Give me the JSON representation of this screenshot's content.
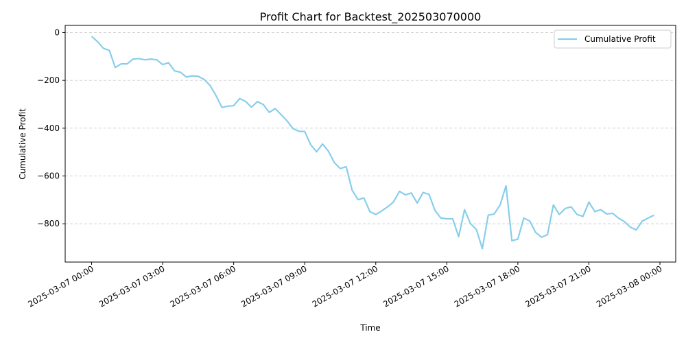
{
  "chart_data": {
    "type": "line",
    "title": "Profit Chart for Backtest_202503070000",
    "xlabel": "Time",
    "ylabel": "Cumulative Profit",
    "x_range": [
      "2025-03-06 22:53",
      "2025-03-08 00:40"
    ],
    "ylim": [
      -960,
      30
    ],
    "x_ticks": [
      "2025-03-07 00:00",
      "2025-03-07 03:00",
      "2025-03-07 06:00",
      "2025-03-07 09:00",
      "2025-03-07 12:00",
      "2025-03-07 15:00",
      "2025-03-07 18:00",
      "2025-03-07 21:00",
      "2025-03-08 00:00"
    ],
    "y_ticks": [
      0,
      -200,
      -400,
      -600,
      -800
    ],
    "grid": "horizontal dashed",
    "legend_position": "top-right",
    "series": [
      {
        "name": "Cumulative Profit",
        "color": "#87ceeb",
        "points": [
          [
            "2025-03-07 00:00",
            -16
          ],
          [
            "2025-03-07 00:15",
            -38
          ],
          [
            "2025-03-07 00:30",
            -66
          ],
          [
            "2025-03-07 00:45",
            -75
          ],
          [
            "2025-03-07 01:00",
            -146
          ],
          [
            "2025-03-07 01:15",
            -131
          ],
          [
            "2025-03-07 01:30",
            -131
          ],
          [
            "2025-03-07 01:45",
            -111
          ],
          [
            "2025-03-07 02:00",
            -109
          ],
          [
            "2025-03-07 02:15",
            -114
          ],
          [
            "2025-03-07 02:30",
            -111
          ],
          [
            "2025-03-07 02:45",
            -114
          ],
          [
            "2025-03-07 03:00",
            -134
          ],
          [
            "2025-03-07 03:15",
            -126
          ],
          [
            "2025-03-07 03:30",
            -160
          ],
          [
            "2025-03-07 03:45",
            -166
          ],
          [
            "2025-03-07 04:00",
            -186
          ],
          [
            "2025-03-07 04:15",
            -181
          ],
          [
            "2025-03-07 04:30",
            -183
          ],
          [
            "2025-03-07 04:45",
            -196
          ],
          [
            "2025-03-07 05:00",
            -221
          ],
          [
            "2025-03-07 05:15",
            -263
          ],
          [
            "2025-03-07 05:30",
            -313
          ],
          [
            "2025-03-07 05:45",
            -308
          ],
          [
            "2025-03-07 06:00",
            -306
          ],
          [
            "2025-03-07 06:15",
            -276
          ],
          [
            "2025-03-07 06:30",
            -288
          ],
          [
            "2025-03-07 06:45",
            -312
          ],
          [
            "2025-03-07 07:00",
            -289
          ],
          [
            "2025-03-07 07:15",
            -301
          ],
          [
            "2025-03-07 07:30",
            -334
          ],
          [
            "2025-03-07 07:45",
            -318
          ],
          [
            "2025-03-07 08:00",
            -343
          ],
          [
            "2025-03-07 08:15",
            -369
          ],
          [
            "2025-03-07 08:30",
            -401
          ],
          [
            "2025-03-07 08:45",
            -413
          ],
          [
            "2025-03-07 09:00",
            -414
          ],
          [
            "2025-03-07 09:15",
            -469
          ],
          [
            "2025-03-07 09:30",
            -499
          ],
          [
            "2025-03-07 09:45",
            -466
          ],
          [
            "2025-03-07 10:00",
            -496
          ],
          [
            "2025-03-07 10:15",
            -544
          ],
          [
            "2025-03-07 10:30",
            -569
          ],
          [
            "2025-03-07 10:45",
            -561
          ],
          [
            "2025-03-07 11:00",
            -659
          ],
          [
            "2025-03-07 11:15",
            -699
          ],
          [
            "2025-03-07 11:30",
            -692
          ],
          [
            "2025-03-07 11:45",
            -749
          ],
          [
            "2025-03-07 12:00",
            -761
          ],
          [
            "2025-03-07 12:15",
            -746
          ],
          [
            "2025-03-07 12:30",
            -729
          ],
          [
            "2025-03-07 12:45",
            -709
          ],
          [
            "2025-03-07 13:00",
            -664
          ],
          [
            "2025-03-07 13:15",
            -679
          ],
          [
            "2025-03-07 13:30",
            -671
          ],
          [
            "2025-03-07 13:45",
            -713
          ],
          [
            "2025-03-07 14:00",
            -669
          ],
          [
            "2025-03-07 14:15",
            -677
          ],
          [
            "2025-03-07 14:30",
            -744
          ],
          [
            "2025-03-07 14:45",
            -776
          ],
          [
            "2025-03-07 15:00",
            -779
          ],
          [
            "2025-03-07 15:15",
            -779
          ],
          [
            "2025-03-07 15:30",
            -854
          ],
          [
            "2025-03-07 15:45",
            -741
          ],
          [
            "2025-03-07 16:00",
            -799
          ],
          [
            "2025-03-07 16:15",
            -824
          ],
          [
            "2025-03-07 16:30",
            -904
          ],
          [
            "2025-03-07 16:45",
            -764
          ],
          [
            "2025-03-07 17:00",
            -759
          ],
          [
            "2025-03-07 17:15",
            -721
          ],
          [
            "2025-03-07 17:30",
            -641
          ],
          [
            "2025-03-07 17:45",
            -871
          ],
          [
            "2025-03-07 18:00",
            -864
          ],
          [
            "2025-03-07 18:15",
            -776
          ],
          [
            "2025-03-07 18:30",
            -788
          ],
          [
            "2025-03-07 18:45",
            -836
          ],
          [
            "2025-03-07 19:00",
            -856
          ],
          [
            "2025-03-07 19:15",
            -846
          ],
          [
            "2025-03-07 19:30",
            -721
          ],
          [
            "2025-03-07 19:45",
            -761
          ],
          [
            "2025-03-07 20:00",
            -736
          ],
          [
            "2025-03-07 20:15",
            -729
          ],
          [
            "2025-03-07 20:30",
            -761
          ],
          [
            "2025-03-07 20:45",
            -769
          ],
          [
            "2025-03-07 21:00",
            -709
          ],
          [
            "2025-03-07 21:15",
            -749
          ],
          [
            "2025-03-07 21:30",
            -741
          ],
          [
            "2025-03-07 21:45",
            -759
          ],
          [
            "2025-03-07 22:00",
            -756
          ],
          [
            "2025-03-07 22:15",
            -776
          ],
          [
            "2025-03-07 22:30",
            -791
          ],
          [
            "2025-03-07 22:45",
            -814
          ],
          [
            "2025-03-07 23:00",
            -826
          ],
          [
            "2025-03-07 23:15",
            -789
          ],
          [
            "2025-03-07 23:30",
            -776
          ],
          [
            "2025-03-07 23:45",
            -764
          ]
        ]
      }
    ]
  }
}
